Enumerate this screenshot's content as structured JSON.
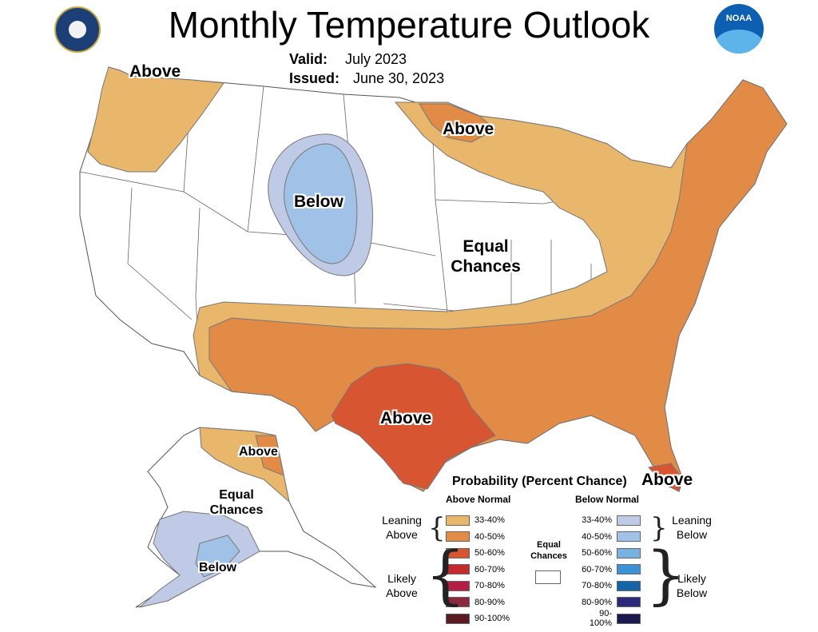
{
  "header": {
    "title": "Monthly Temperature Outlook",
    "valid_label": "Valid:",
    "valid_value": "July 2023",
    "issued_label": "Issued:",
    "issued_value": "June 30, 2023"
  },
  "region_labels": {
    "northwest": "Above",
    "great_lakes": "Above",
    "central_rockies": "Below",
    "midwest_line1": "Equal",
    "midwest_line2": "Chances",
    "texas": "Above",
    "florida": "Above",
    "alaska_north": "Above",
    "alaska_mid_line1": "Equal",
    "alaska_mid_line2": "Chances",
    "alaska_south": "Below"
  },
  "legend": {
    "title": "Probability (Percent Chance)",
    "above_header": "Above Normal",
    "below_header": "Below Normal",
    "equal_line1": "Equal",
    "equal_line2": "Chances",
    "leaning_above_1": "Leaning",
    "leaning_above_2": "Above",
    "likely_above_1": "Likely",
    "likely_above_2": "Above",
    "leaning_below_1": "Leaning",
    "leaning_below_2": "Below",
    "likely_below_1": "Likely",
    "likely_below_2": "Below",
    "above": [
      {
        "label": "33-40%",
        "color": "#e8b76c"
      },
      {
        "label": "40-50%",
        "color": "#e28b47"
      },
      {
        "label": "50-60%",
        "color": "#d75530"
      },
      {
        "label": "60-70%",
        "color": "#c42a2e"
      },
      {
        "label": "70-80%",
        "color": "#b41e45"
      },
      {
        "label": "80-90%",
        "color": "#8a2a3c"
      },
      {
        "label": "90-100%",
        "color": "#5a1a22"
      }
    ],
    "below": [
      {
        "label": "33-40%",
        "color": "#bfcbe6"
      },
      {
        "label": "40-50%",
        "color": "#9fc2e6"
      },
      {
        "label": "50-60%",
        "color": "#76b3e2"
      },
      {
        "label": "60-70%",
        "color": "#3b92d6"
      },
      {
        "label": "70-80%",
        "color": "#1563a8"
      },
      {
        "label": "80-90%",
        "color": "#2b2a7a"
      },
      {
        "label": "90-100%",
        "color": "#1b1a4e"
      }
    ]
  }
}
